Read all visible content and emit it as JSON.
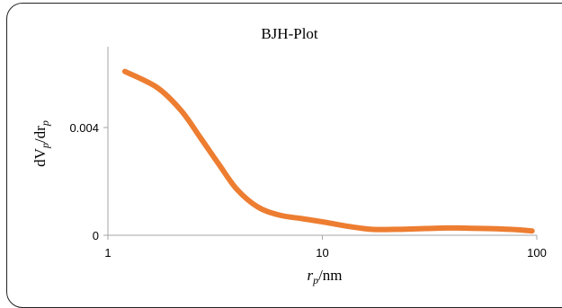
{
  "chart_data": {
    "type": "line",
    "title": "BJH-Plot",
    "xlabel": {
      "main": "r",
      "sub": "p",
      "unit": "/nm"
    },
    "ylabel": {
      "d1": "dV",
      "sub1": "p",
      "mid": "/dr",
      "sub2": "p"
    },
    "xscale": "log",
    "xlim": [
      1,
      100
    ],
    "ylim": [
      0,
      0.007
    ],
    "xticks": [
      1,
      10,
      100
    ],
    "xtick_labels": [
      "1",
      "10",
      "100"
    ],
    "yticks": [
      0,
      0.004
    ],
    "ytick_labels": [
      "0",
      "0.004"
    ],
    "grid": false,
    "legend": "none",
    "series": [
      {
        "color": "#ED7D31",
        "x": [
          1.2,
          1.7,
          2.2,
          2.7,
          3.3,
          4.0,
          5.0,
          6.3,
          8.0,
          10.0,
          13.0,
          17.0,
          22.0,
          30.0,
          38.0,
          50.0,
          65.0,
          80.0,
          95.0
        ],
        "y": [
          0.00608,
          0.00548,
          0.00462,
          0.00362,
          0.00262,
          0.0017,
          0.00105,
          0.00075,
          0.00062,
          0.0005,
          0.00034,
          0.00022,
          0.00022,
          0.00025,
          0.00027,
          0.00026,
          0.00024,
          0.00021,
          0.00016
        ]
      }
    ]
  }
}
